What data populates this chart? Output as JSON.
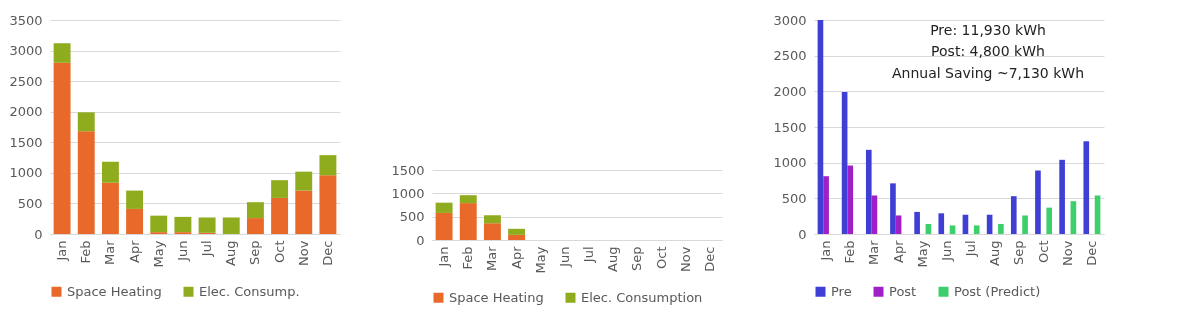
{
  "chart_data": [
    {
      "type": "bar",
      "stacked": true,
      "legend": "bottom",
      "grid": "y",
      "categories": [
        "Jan",
        "Feb",
        "Mar",
        "Apr",
        "May",
        "Jun",
        "Jul",
        "Aug",
        "Sep",
        "Oct",
        "Nov",
        "Dec"
      ],
      "ylim": [
        0,
        3500
      ],
      "yticks": [
        0,
        500,
        1000,
        1500,
        2000,
        2500,
        3000,
        3500
      ],
      "series": [
        {
          "name": "Space Heating",
          "color": "#e8692a",
          "values": [
            2800,
            1680,
            840,
            410,
            30,
            30,
            20,
            0,
            260,
            590,
            710,
            960
          ]
        },
        {
          "name": "Elec. Consump.",
          "color": "#8fac1f",
          "values": [
            320,
            310,
            340,
            300,
            270,
            250,
            250,
            270,
            260,
            290,
            310,
            330
          ]
        }
      ]
    },
    {
      "type": "bar",
      "stacked": true,
      "legend": "bottom",
      "grid": "y",
      "categories": [
        "Jan",
        "Feb",
        "Mar",
        "Apr",
        "May",
        "Jun",
        "Jul",
        "Aug",
        "Sep",
        "Oct",
        "Nov",
        "Dec"
      ],
      "ylim": [
        0,
        1500
      ],
      "yticks": [
        0,
        500,
        1000,
        1500
      ],
      "series": [
        {
          "name": "Space Heating",
          "color": "#e8692a",
          "values": [
            580,
            790,
            360,
            110,
            null,
            null,
            null,
            null,
            null,
            null,
            null,
            null
          ]
        },
        {
          "name": "Elec. Consumption",
          "color": "#8fac1f",
          "values": [
            220,
            170,
            170,
            130,
            null,
            null,
            null,
            null,
            null,
            null,
            null,
            null
          ]
        }
      ]
    },
    {
      "type": "bar",
      "legend": "bottom",
      "grid": "y",
      "categories": [
        "Jan",
        "Feb",
        "Mar",
        "Apr",
        "May",
        "Jun",
        "Jul",
        "Aug",
        "Sep",
        "Oct",
        "Nov",
        "Dec"
      ],
      "ylim": [
        0,
        3000
      ],
      "yticks": [
        0,
        500,
        1000,
        1500,
        2000,
        2500,
        3000
      ],
      "annotations": [
        "Pre: 11,930 kWh",
        "Post: 4,800 kWh",
        "Annual Saving ~7,130 kWh"
      ],
      "series": [
        {
          "name": "Pre",
          "color": "#3f3fd6",
          "values": [
            3000,
            1990,
            1180,
            710,
            310,
            290,
            270,
            270,
            530,
            890,
            1040,
            1300
          ]
        },
        {
          "name": "Post",
          "color": "#a020c8",
          "values": [
            810,
            960,
            540,
            260,
            null,
            null,
            null,
            null,
            null,
            null,
            null,
            null
          ]
        },
        {
          "name": "Post (Predict)",
          "color": "#3ccf6b",
          "values": [
            null,
            null,
            null,
            null,
            140,
            120,
            120,
            140,
            260,
            370,
            460,
            540
          ]
        }
      ]
    }
  ]
}
